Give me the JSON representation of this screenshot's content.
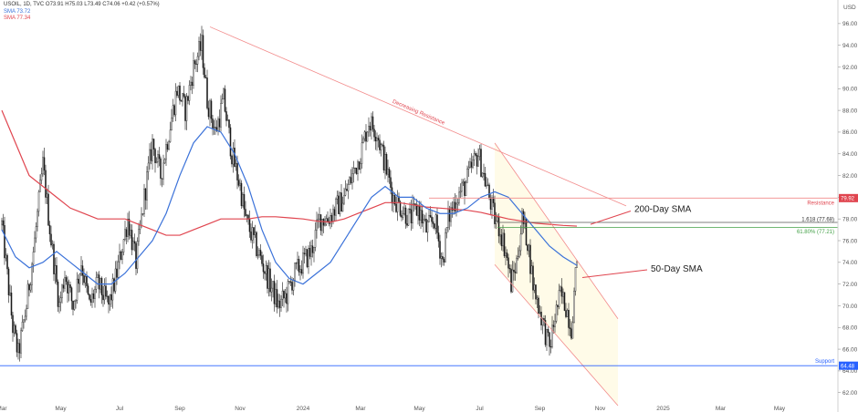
{
  "legend": {
    "title": "USOIL, 1D, TVC O73.91 H75.03 L73.49 C74.06 +0.42 (+0.57%)",
    "sma50": "SMA 73.72",
    "sma200": "SMA 77.34"
  },
  "axis_currency": "USD",
  "colors": {
    "sma50": "#3b72d9",
    "sma200": "#e0454f",
    "candle": "#1a1a1a",
    "trendline": "#f28b8b",
    "fib": "#43a047",
    "support": "#2962ff",
    "channel_fill": "#fffbe8"
  },
  "chart_data": {
    "type": "candlestick",
    "symbol": "USOIL",
    "ylim": [
      60.8,
      97.5
    ],
    "y_ticks": [
      "96.00",
      "94.00",
      "92.00",
      "90.00",
      "88.00",
      "86.00",
      "84.00",
      "82.00",
      "80.00",
      "78.00",
      "76.00",
      "74.00",
      "72.00",
      "70.00",
      "68.00",
      "66.00",
      "64.00",
      "62.00"
    ],
    "x_ticks": [
      {
        "label": "Mar",
        "idx": 0
      },
      {
        "label": "May",
        "idx": 43
      },
      {
        "label": "Jul",
        "idx": 86
      },
      {
        "label": "Sep",
        "idx": 130
      },
      {
        "label": "Nov",
        "idx": 174
      },
      {
        "label": "2024",
        "idx": 220
      },
      {
        "label": "Mar",
        "idx": 262
      },
      {
        "label": "May",
        "idx": 305
      },
      {
        "label": "Jul",
        "idx": 349
      },
      {
        "label": "Sep",
        "idx": 393
      },
      {
        "label": "Nov",
        "idx": 437
      },
      {
        "label": "2025",
        "idx": 483
      },
      {
        "label": "Mar",
        "idx": 525
      },
      {
        "label": "May",
        "idx": 568
      }
    ],
    "last_index": 420,
    "price_anchors": [
      [
        0,
        77.5
      ],
      [
        8,
        68
      ],
      [
        12,
        65.5
      ],
      [
        18,
        70
      ],
      [
        24,
        76
      ],
      [
        30,
        83
      ],
      [
        36,
        76
      ],
      [
        42,
        70
      ],
      [
        46,
        73
      ],
      [
        52,
        70
      ],
      [
        58,
        74
      ],
      [
        64,
        70
      ],
      [
        70,
        72
      ],
      [
        78,
        70
      ],
      [
        84,
        73
      ],
      [
        92,
        78
      ],
      [
        98,
        74
      ],
      [
        104,
        80
      ],
      [
        110,
        85
      ],
      [
        116,
        82
      ],
      [
        122,
        86
      ],
      [
        128,
        90
      ],
      [
        134,
        88
      ],
      [
        140,
        92
      ],
      [
        146,
        94
      ],
      [
        150,
        89
      ],
      [
        156,
        86
      ],
      [
        162,
        89
      ],
      [
        168,
        84
      ],
      [
        174,
        81
      ],
      [
        178,
        78
      ],
      [
        184,
        76
      ],
      [
        190,
        74
      ],
      [
        196,
        72
      ],
      [
        202,
        70
      ],
      [
        208,
        71
      ],
      [
        214,
        73
      ],
      [
        220,
        74
      ],
      [
        226,
        75
      ],
      [
        232,
        78
      ],
      [
        238,
        78
      ],
      [
        244,
        79
      ],
      [
        250,
        80
      ],
      [
        256,
        82
      ],
      [
        262,
        84
      ],
      [
        268,
        87
      ],
      [
        274,
        86
      ],
      [
        280,
        83
      ],
      [
        286,
        80
      ],
      [
        292,
        79
      ],
      [
        298,
        78
      ],
      [
        304,
        79
      ],
      [
        310,
        77
      ],
      [
        316,
        78
      ],
      [
        322,
        74
      ],
      [
        326,
        78
      ],
      [
        332,
        80
      ],
      [
        338,
        81
      ],
      [
        344,
        83
      ],
      [
        348,
        84
      ],
      [
        352,
        82
      ],
      [
        356,
        80
      ],
      [
        360,
        78
      ],
      [
        364,
        77
      ],
      [
        368,
        75
      ],
      [
        372,
        72
      ],
      [
        376,
        74
      ],
      [
        380,
        78
      ],
      [
        384,
        76
      ],
      [
        388,
        72
      ],
      [
        392,
        70
      ],
      [
        396,
        68
      ],
      [
        400,
        66
      ],
      [
        404,
        69
      ],
      [
        408,
        71
      ],
      [
        412,
        70
      ],
      [
        416,
        68
      ],
      [
        420,
        74.06
      ]
    ],
    "series": [
      {
        "name": "SMA 73.72",
        "last_value": 73.72,
        "anchors": [
          [
            0,
            77
          ],
          [
            10,
            74.5
          ],
          [
            20,
            73.5
          ],
          [
            30,
            74
          ],
          [
            40,
            75
          ],
          [
            50,
            74
          ],
          [
            60,
            73
          ],
          [
            70,
            72
          ],
          [
            80,
            72
          ],
          [
            90,
            73
          ],
          [
            100,
            74.5
          ],
          [
            110,
            76
          ],
          [
            120,
            78.5
          ],
          [
            130,
            82
          ],
          [
            140,
            85
          ],
          [
            150,
            86.5
          ],
          [
            160,
            86
          ],
          [
            170,
            84
          ],
          [
            180,
            81
          ],
          [
            190,
            77
          ],
          [
            200,
            74
          ],
          [
            210,
            72.5
          ],
          [
            220,
            72
          ],
          [
            230,
            73
          ],
          [
            240,
            74
          ],
          [
            250,
            76
          ],
          [
            260,
            78
          ],
          [
            270,
            80
          ],
          [
            280,
            81
          ],
          [
            290,
            80
          ],
          [
            300,
            80
          ],
          [
            310,
            79
          ],
          [
            320,
            78.5
          ],
          [
            330,
            78.5
          ],
          [
            340,
            79
          ],
          [
            350,
            80
          ],
          [
            360,
            80.5
          ],
          [
            370,
            80
          ],
          [
            380,
            78.5
          ],
          [
            390,
            77
          ],
          [
            400,
            75.5
          ],
          [
            410,
            74.5
          ],
          [
            420,
            73.72
          ]
        ]
      },
      {
        "name": "SMA 77.34",
        "last_value": 77.34,
        "anchors": [
          [
            0,
            88
          ],
          [
            10,
            85
          ],
          [
            20,
            82
          ],
          [
            30,
            81
          ],
          [
            40,
            80
          ],
          [
            50,
            79
          ],
          [
            60,
            78.5
          ],
          [
            70,
            78
          ],
          [
            80,
            78
          ],
          [
            90,
            78
          ],
          [
            100,
            77.5
          ],
          [
            110,
            77
          ],
          [
            120,
            76.5
          ],
          [
            130,
            76.5
          ],
          [
            140,
            77
          ],
          [
            150,
            77.5
          ],
          [
            160,
            78
          ],
          [
            170,
            78
          ],
          [
            180,
            78
          ],
          [
            190,
            78.2
          ],
          [
            200,
            78.2
          ],
          [
            210,
            78.1
          ],
          [
            220,
            78
          ],
          [
            230,
            77.8
          ],
          [
            240,
            77.7
          ],
          [
            250,
            78
          ],
          [
            260,
            78.5
          ],
          [
            270,
            79
          ],
          [
            280,
            79.5
          ],
          [
            290,
            79.5
          ],
          [
            300,
            79.3
          ],
          [
            310,
            79.1
          ],
          [
            320,
            79
          ],
          [
            330,
            78.9
          ],
          [
            340,
            78.8
          ],
          [
            350,
            78.6
          ],
          [
            360,
            78.3
          ],
          [
            370,
            78
          ],
          [
            380,
            77.8
          ],
          [
            390,
            77.6
          ],
          [
            400,
            77.5
          ],
          [
            410,
            77.4
          ],
          [
            420,
            77.34
          ]
        ]
      }
    ],
    "levels": [
      {
        "name": "Resistance",
        "value": 79.92,
        "tag": "79.92"
      },
      {
        "name": "Support",
        "value": 64.48,
        "tag": "64.48"
      },
      {
        "name": "1.618 (77.68)",
        "value": 77.68
      },
      {
        "name": "61.80% (77.21)",
        "value": 77.21
      }
    ],
    "trendline": {
      "label": "Decreasing Resistance",
      "from": [
        152,
        95.7
      ],
      "to": [
        456,
        79.2
      ]
    },
    "channel": {
      "upper_from": [
        360,
        85
      ],
      "upper_to": [
        450,
        68.8
      ],
      "lower_from": [
        360,
        73.8
      ],
      "lower_to": [
        450,
        60.8
      ]
    },
    "annotations": [
      {
        "text": "200-Day SMA",
        "at": [
          462,
          78.9
        ],
        "arrow_to": [
          430,
          77.5
        ]
      },
      {
        "text": "50-Day SMA",
        "at": [
          474,
          73.4
        ],
        "arrow_to": [
          424,
          72.6
        ]
      }
    ]
  }
}
